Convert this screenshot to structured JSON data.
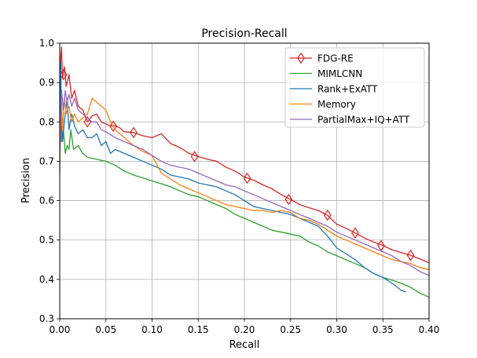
{
  "chart_data": {
    "type": "line",
    "title": "Precision-Recall",
    "xlabel": "Recall",
    "ylabel": "Precision",
    "xlim": [
      0.0,
      0.4
    ],
    "ylim": [
      0.3,
      1.0
    ],
    "xticks": [
      "0.00",
      "0.05",
      "0.10",
      "0.15",
      "0.20",
      "0.25",
      "0.30",
      "0.35",
      "0.40"
    ],
    "yticks": [
      "0.3",
      "0.4",
      "0.5",
      "0.6",
      "0.7",
      "0.8",
      "0.9",
      "1.0"
    ],
    "grid": true,
    "legend_position": "top-right",
    "series": [
      {
        "name": "FDG-RE",
        "color": "#d62728",
        "marker": "thin_diamond",
        "marker_points": [
          {
            "x": 0.004,
            "y": 0.92
          },
          {
            "x": 0.03,
            "y": 0.8
          },
          {
            "x": 0.058,
            "y": 0.789
          },
          {
            "x": 0.08,
            "y": 0.773
          },
          {
            "x": 0.146,
            "y": 0.712
          },
          {
            "x": 0.203,
            "y": 0.657
          },
          {
            "x": 0.248,
            "y": 0.603
          },
          {
            "x": 0.29,
            "y": 0.563
          },
          {
            "x": 0.32,
            "y": 0.518
          },
          {
            "x": 0.348,
            "y": 0.486
          },
          {
            "x": 0.38,
            "y": 0.461
          }
        ],
        "points": [
          {
            "x": 0.0,
            "y": 0.78
          },
          {
            "x": 0.001,
            "y": 0.96
          },
          {
            "x": 0.002,
            "y": 0.99
          },
          {
            "x": 0.003,
            "y": 0.91
          },
          {
            "x": 0.005,
            "y": 0.94
          },
          {
            "x": 0.007,
            "y": 0.89
          },
          {
            "x": 0.01,
            "y": 0.92
          },
          {
            "x": 0.013,
            "y": 0.86
          },
          {
            "x": 0.016,
            "y": 0.88
          },
          {
            "x": 0.02,
            "y": 0.84
          },
          {
            "x": 0.025,
            "y": 0.83
          },
          {
            "x": 0.03,
            "y": 0.8
          },
          {
            "x": 0.035,
            "y": 0.815
          },
          {
            "x": 0.04,
            "y": 0.82
          },
          {
            "x": 0.045,
            "y": 0.8
          },
          {
            "x": 0.05,
            "y": 0.795
          },
          {
            "x": 0.055,
            "y": 0.79
          },
          {
            "x": 0.06,
            "y": 0.79
          },
          {
            "x": 0.065,
            "y": 0.785
          },
          {
            "x": 0.07,
            "y": 0.775
          },
          {
            "x": 0.08,
            "y": 0.773
          },
          {
            "x": 0.09,
            "y": 0.765
          },
          {
            "x": 0.1,
            "y": 0.76
          },
          {
            "x": 0.11,
            "y": 0.77
          },
          {
            "x": 0.12,
            "y": 0.745
          },
          {
            "x": 0.13,
            "y": 0.735
          },
          {
            "x": 0.14,
            "y": 0.72
          },
          {
            "x": 0.15,
            "y": 0.712
          },
          {
            "x": 0.16,
            "y": 0.705
          },
          {
            "x": 0.17,
            "y": 0.7
          },
          {
            "x": 0.18,
            "y": 0.685
          },
          {
            "x": 0.19,
            "y": 0.675
          },
          {
            "x": 0.2,
            "y": 0.66
          },
          {
            "x": 0.21,
            "y": 0.652
          },
          {
            "x": 0.22,
            "y": 0.64
          },
          {
            "x": 0.23,
            "y": 0.63
          },
          {
            "x": 0.24,
            "y": 0.615
          },
          {
            "x": 0.25,
            "y": 0.603
          },
          {
            "x": 0.26,
            "y": 0.59
          },
          {
            "x": 0.27,
            "y": 0.582
          },
          {
            "x": 0.28,
            "y": 0.575
          },
          {
            "x": 0.29,
            "y": 0.563
          },
          {
            "x": 0.3,
            "y": 0.54
          },
          {
            "x": 0.31,
            "y": 0.53
          },
          {
            "x": 0.32,
            "y": 0.518
          },
          {
            "x": 0.33,
            "y": 0.505
          },
          {
            "x": 0.34,
            "y": 0.495
          },
          {
            "x": 0.35,
            "y": 0.486
          },
          {
            "x": 0.36,
            "y": 0.475
          },
          {
            "x": 0.37,
            "y": 0.468
          },
          {
            "x": 0.38,
            "y": 0.461
          },
          {
            "x": 0.39,
            "y": 0.452
          },
          {
            "x": 0.4,
            "y": 0.442
          }
        ]
      },
      {
        "name": "MIMLCNN",
        "color": "#2ca02c",
        "points": [
          {
            "x": 0.0,
            "y": 0.68
          },
          {
            "x": 0.001,
            "y": 0.9
          },
          {
            "x": 0.002,
            "y": 0.75
          },
          {
            "x": 0.004,
            "y": 0.78
          },
          {
            "x": 0.006,
            "y": 0.72
          },
          {
            "x": 0.008,
            "y": 0.74
          },
          {
            "x": 0.01,
            "y": 0.73
          },
          {
            "x": 0.012,
            "y": 0.78
          },
          {
            "x": 0.015,
            "y": 0.73
          },
          {
            "x": 0.02,
            "y": 0.74
          },
          {
            "x": 0.025,
            "y": 0.72
          },
          {
            "x": 0.03,
            "y": 0.71
          },
          {
            "x": 0.04,
            "y": 0.705
          },
          {
            "x": 0.05,
            "y": 0.7
          },
          {
            "x": 0.06,
            "y": 0.69
          },
          {
            "x": 0.07,
            "y": 0.675
          },
          {
            "x": 0.08,
            "y": 0.665
          },
          {
            "x": 0.09,
            "y": 0.658
          },
          {
            "x": 0.1,
            "y": 0.65
          },
          {
            "x": 0.11,
            "y": 0.643
          },
          {
            "x": 0.12,
            "y": 0.635
          },
          {
            "x": 0.13,
            "y": 0.625
          },
          {
            "x": 0.14,
            "y": 0.615
          },
          {
            "x": 0.15,
            "y": 0.61
          },
          {
            "x": 0.16,
            "y": 0.6
          },
          {
            "x": 0.17,
            "y": 0.59
          },
          {
            "x": 0.18,
            "y": 0.58
          },
          {
            "x": 0.19,
            "y": 0.565
          },
          {
            "x": 0.2,
            "y": 0.555
          },
          {
            "x": 0.21,
            "y": 0.545
          },
          {
            "x": 0.22,
            "y": 0.535
          },
          {
            "x": 0.23,
            "y": 0.525
          },
          {
            "x": 0.24,
            "y": 0.52
          },
          {
            "x": 0.25,
            "y": 0.515
          },
          {
            "x": 0.26,
            "y": 0.51
          },
          {
            "x": 0.27,
            "y": 0.495
          },
          {
            "x": 0.28,
            "y": 0.485
          },
          {
            "x": 0.29,
            "y": 0.47
          },
          {
            "x": 0.3,
            "y": 0.46
          },
          {
            "x": 0.31,
            "y": 0.45
          },
          {
            "x": 0.32,
            "y": 0.44
          },
          {
            "x": 0.33,
            "y": 0.43
          },
          {
            "x": 0.34,
            "y": 0.415
          },
          {
            "x": 0.35,
            "y": 0.405
          },
          {
            "x": 0.36,
            "y": 0.398
          },
          {
            "x": 0.37,
            "y": 0.39
          },
          {
            "x": 0.38,
            "y": 0.38
          },
          {
            "x": 0.39,
            "y": 0.365
          },
          {
            "x": 0.4,
            "y": 0.355
          }
        ]
      },
      {
        "name": "Rank+ExATT",
        "color": "#1f77b4",
        "points": [
          {
            "x": 0.0,
            "y": 0.67
          },
          {
            "x": 0.001,
            "y": 0.95
          },
          {
            "x": 0.002,
            "y": 0.8
          },
          {
            "x": 0.003,
            "y": 0.75
          },
          {
            "x": 0.005,
            "y": 0.8
          },
          {
            "x": 0.008,
            "y": 0.86
          },
          {
            "x": 0.01,
            "y": 0.78
          },
          {
            "x": 0.013,
            "y": 0.82
          },
          {
            "x": 0.016,
            "y": 0.79
          },
          {
            "x": 0.02,
            "y": 0.77
          },
          {
            "x": 0.025,
            "y": 0.78
          },
          {
            "x": 0.03,
            "y": 0.76
          },
          {
            "x": 0.035,
            "y": 0.76
          },
          {
            "x": 0.04,
            "y": 0.77
          },
          {
            "x": 0.045,
            "y": 0.74
          },
          {
            "x": 0.05,
            "y": 0.75
          },
          {
            "x": 0.055,
            "y": 0.72
          },
          {
            "x": 0.06,
            "y": 0.73
          },
          {
            "x": 0.07,
            "y": 0.72
          },
          {
            "x": 0.08,
            "y": 0.71
          },
          {
            "x": 0.09,
            "y": 0.7
          },
          {
            "x": 0.1,
            "y": 0.69
          },
          {
            "x": 0.11,
            "y": 0.68
          },
          {
            "x": 0.12,
            "y": 0.665
          },
          {
            "x": 0.13,
            "y": 0.66
          },
          {
            "x": 0.14,
            "y": 0.655
          },
          {
            "x": 0.15,
            "y": 0.645
          },
          {
            "x": 0.16,
            "y": 0.64
          },
          {
            "x": 0.17,
            "y": 0.635
          },
          {
            "x": 0.18,
            "y": 0.625
          },
          {
            "x": 0.19,
            "y": 0.615
          },
          {
            "x": 0.2,
            "y": 0.6
          },
          {
            "x": 0.21,
            "y": 0.585
          },
          {
            "x": 0.22,
            "y": 0.58
          },
          {
            "x": 0.23,
            "y": 0.575
          },
          {
            "x": 0.24,
            "y": 0.57
          },
          {
            "x": 0.25,
            "y": 0.565
          },
          {
            "x": 0.26,
            "y": 0.555
          },
          {
            "x": 0.27,
            "y": 0.545
          },
          {
            "x": 0.28,
            "y": 0.535
          },
          {
            "x": 0.29,
            "y": 0.51
          },
          {
            "x": 0.3,
            "y": 0.48
          },
          {
            "x": 0.31,
            "y": 0.465
          },
          {
            "x": 0.32,
            "y": 0.45
          },
          {
            "x": 0.33,
            "y": 0.43
          },
          {
            "x": 0.34,
            "y": 0.415
          },
          {
            "x": 0.35,
            "y": 0.405
          },
          {
            "x": 0.36,
            "y": 0.39
          },
          {
            "x": 0.37,
            "y": 0.372
          },
          {
            "x": 0.375,
            "y": 0.368
          }
        ]
      },
      {
        "name": "Memory",
        "color": "#ff7f0e",
        "points": [
          {
            "x": 0.0,
            "y": 0.7
          },
          {
            "x": 0.002,
            "y": 0.85
          },
          {
            "x": 0.003,
            "y": 0.78
          },
          {
            "x": 0.005,
            "y": 0.86
          },
          {
            "x": 0.007,
            "y": 0.82
          },
          {
            "x": 0.01,
            "y": 0.84
          },
          {
            "x": 0.013,
            "y": 0.8
          },
          {
            "x": 0.016,
            "y": 0.82
          },
          {
            "x": 0.02,
            "y": 0.8
          },
          {
            "x": 0.025,
            "y": 0.81
          },
          {
            "x": 0.03,
            "y": 0.82
          },
          {
            "x": 0.035,
            "y": 0.86
          },
          {
            "x": 0.04,
            "y": 0.85
          },
          {
            "x": 0.045,
            "y": 0.84
          },
          {
            "x": 0.05,
            "y": 0.83
          },
          {
            "x": 0.055,
            "y": 0.8
          },
          {
            "x": 0.06,
            "y": 0.78
          },
          {
            "x": 0.065,
            "y": 0.77
          },
          {
            "x": 0.07,
            "y": 0.76
          },
          {
            "x": 0.08,
            "y": 0.74
          },
          {
            "x": 0.09,
            "y": 0.725
          },
          {
            "x": 0.1,
            "y": 0.715
          },
          {
            "x": 0.11,
            "y": 0.67
          },
          {
            "x": 0.12,
            "y": 0.655
          },
          {
            "x": 0.13,
            "y": 0.64
          },
          {
            "x": 0.14,
            "y": 0.63
          },
          {
            "x": 0.15,
            "y": 0.62
          },
          {
            "x": 0.16,
            "y": 0.61
          },
          {
            "x": 0.17,
            "y": 0.6
          },
          {
            "x": 0.18,
            "y": 0.59
          },
          {
            "x": 0.19,
            "y": 0.585
          },
          {
            "x": 0.2,
            "y": 0.58
          },
          {
            "x": 0.21,
            "y": 0.575
          },
          {
            "x": 0.22,
            "y": 0.575
          },
          {
            "x": 0.23,
            "y": 0.57
          },
          {
            "x": 0.24,
            "y": 0.575
          },
          {
            "x": 0.25,
            "y": 0.57
          },
          {
            "x": 0.26,
            "y": 0.555
          },
          {
            "x": 0.27,
            "y": 0.55
          },
          {
            "x": 0.28,
            "y": 0.54
          },
          {
            "x": 0.29,
            "y": 0.525
          },
          {
            "x": 0.3,
            "y": 0.51
          },
          {
            "x": 0.31,
            "y": 0.5
          },
          {
            "x": 0.32,
            "y": 0.49
          },
          {
            "x": 0.33,
            "y": 0.48
          },
          {
            "x": 0.34,
            "y": 0.47
          },
          {
            "x": 0.35,
            "y": 0.46
          },
          {
            "x": 0.36,
            "y": 0.45
          },
          {
            "x": 0.37,
            "y": 0.445
          },
          {
            "x": 0.38,
            "y": 0.44
          },
          {
            "x": 0.39,
            "y": 0.43
          },
          {
            "x": 0.4,
            "y": 0.425
          }
        ]
      },
      {
        "name": "PartialMax+IQ+ATT",
        "color": "#9467bd",
        "points": [
          {
            "x": 0.0,
            "y": 0.72
          },
          {
            "x": 0.002,
            "y": 0.88
          },
          {
            "x": 0.004,
            "y": 0.83
          },
          {
            "x": 0.006,
            "y": 0.88
          },
          {
            "x": 0.008,
            "y": 0.85
          },
          {
            "x": 0.01,
            "y": 0.87
          },
          {
            "x": 0.013,
            "y": 0.84
          },
          {
            "x": 0.016,
            "y": 0.86
          },
          {
            "x": 0.02,
            "y": 0.83
          },
          {
            "x": 0.025,
            "y": 0.82
          },
          {
            "x": 0.03,
            "y": 0.81
          },
          {
            "x": 0.035,
            "y": 0.8
          },
          {
            "x": 0.04,
            "y": 0.8
          },
          {
            "x": 0.045,
            "y": 0.78
          },
          {
            "x": 0.05,
            "y": 0.775
          },
          {
            "x": 0.06,
            "y": 0.76
          },
          {
            "x": 0.07,
            "y": 0.75
          },
          {
            "x": 0.08,
            "y": 0.74
          },
          {
            "x": 0.09,
            "y": 0.73
          },
          {
            "x": 0.1,
            "y": 0.715
          },
          {
            "x": 0.11,
            "y": 0.7
          },
          {
            "x": 0.12,
            "y": 0.69
          },
          {
            "x": 0.13,
            "y": 0.685
          },
          {
            "x": 0.14,
            "y": 0.68
          },
          {
            "x": 0.15,
            "y": 0.67
          },
          {
            "x": 0.16,
            "y": 0.66
          },
          {
            "x": 0.17,
            "y": 0.65
          },
          {
            "x": 0.18,
            "y": 0.64
          },
          {
            "x": 0.19,
            "y": 0.635
          },
          {
            "x": 0.2,
            "y": 0.625
          },
          {
            "x": 0.21,
            "y": 0.615
          },
          {
            "x": 0.22,
            "y": 0.605
          },
          {
            "x": 0.23,
            "y": 0.595
          },
          {
            "x": 0.24,
            "y": 0.585
          },
          {
            "x": 0.25,
            "y": 0.575
          },
          {
            "x": 0.26,
            "y": 0.565
          },
          {
            "x": 0.27,
            "y": 0.555
          },
          {
            "x": 0.28,
            "y": 0.545
          },
          {
            "x": 0.29,
            "y": 0.535
          },
          {
            "x": 0.3,
            "y": 0.52
          },
          {
            "x": 0.31,
            "y": 0.51
          },
          {
            "x": 0.32,
            "y": 0.5
          },
          {
            "x": 0.33,
            "y": 0.49
          },
          {
            "x": 0.34,
            "y": 0.48
          },
          {
            "x": 0.35,
            "y": 0.47
          },
          {
            "x": 0.36,
            "y": 0.46
          },
          {
            "x": 0.37,
            "y": 0.445
          },
          {
            "x": 0.38,
            "y": 0.435
          },
          {
            "x": 0.39,
            "y": 0.42
          },
          {
            "x": 0.4,
            "y": 0.41
          }
        ]
      }
    ]
  }
}
